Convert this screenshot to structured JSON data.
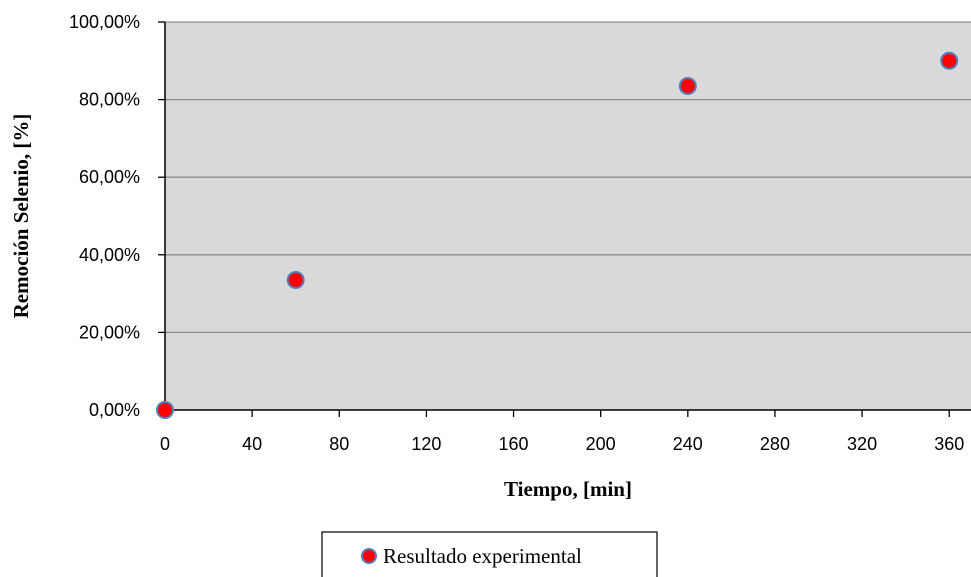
{
  "chart_data": {
    "type": "scatter",
    "title": "",
    "xlabel": "Tiempo, [min]",
    "ylabel": "Remoción  Selenio, [%]",
    "xlim": [
      0,
      370
    ],
    "ylim": [
      0,
      1
    ],
    "x_ticks": [
      "0",
      "40",
      "80",
      "120",
      "160",
      "200",
      "240",
      "280",
      "320",
      "360"
    ],
    "y_ticks": [
      "0,00%",
      "20,00%",
      "40,00%",
      "60,00%",
      "80,00%",
      "100,00%"
    ],
    "grid": true,
    "legend_position": "bottom",
    "series": [
      {
        "name": "Resultado experimental",
        "x": [
          0,
          60,
          240,
          360
        ],
        "y": [
          0.0,
          0.335,
          0.835,
          0.9
        ]
      }
    ],
    "colors": {
      "plot_background": "#d9d9d9",
      "gridline": "#8c8c8c",
      "marker_fill": "#ff0000",
      "marker_stroke": "#4f81bd",
      "axis": "#000000"
    }
  }
}
